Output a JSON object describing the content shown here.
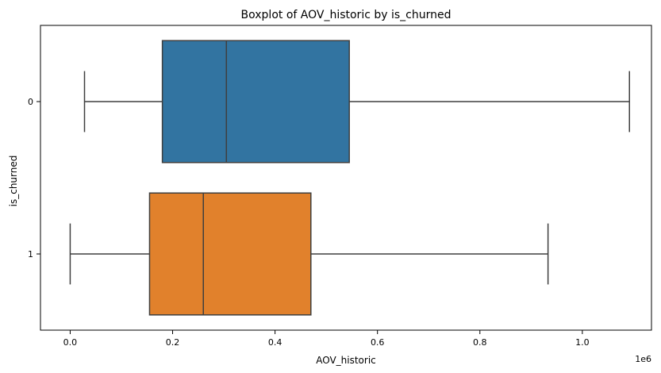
{
  "chart_data": {
    "type": "boxplot",
    "orientation": "horizontal",
    "title": "Boxplot of AOV_historic by is_churned",
    "xlabel": "AOV_historic",
    "ylabel": "is_churned",
    "x_offset_label": "1e6",
    "xlim": [
      -0.058,
      1.135
    ],
    "xticks": [
      0.0,
      0.2,
      0.4,
      0.6,
      0.8,
      1.0
    ],
    "xtick_labels": [
      "0.0",
      "0.2",
      "0.4",
      "0.6",
      "0.8",
      "1.0"
    ],
    "categories": [
      "0",
      "1"
    ],
    "series": [
      {
        "category": "0",
        "color": "#3274a1",
        "whisker_low": 0.028,
        "q1": 0.18,
        "median": 0.305,
        "q3": 0.545,
        "whisker_high": 1.092
      },
      {
        "category": "1",
        "color": "#e1812c",
        "whisker_low": 0.0,
        "q1": 0.155,
        "median": 0.26,
        "q3": 0.47,
        "whisker_high": 0.933
      }
    ],
    "grid": false,
    "legend": "none"
  }
}
